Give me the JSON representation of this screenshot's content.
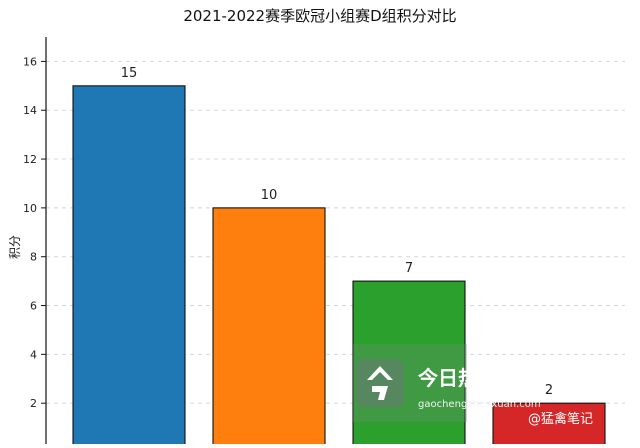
{
  "chart_data": {
    "type": "bar",
    "title": "2021-2022赛季欧冠小组赛D组积分对比",
    "xlabel": "",
    "ylabel": "积分",
    "ylim": [
      0,
      17
    ],
    "yticks": [
      2,
      4,
      6,
      8,
      10,
      12,
      14,
      16
    ],
    "categories": [
      "",
      "",
      "",
      ""
    ],
    "values": [
      15,
      10,
      7,
      2
    ],
    "bar_colors": [
      "#1f77b4",
      "#ff7f0e",
      "#2ca02c",
      "#d62728"
    ],
    "grid": true,
    "legend": "none"
  },
  "watermark": {
    "brand_text": "今日热榜",
    "url": "gaochengzhenxuan.com",
    "credit": "@猛禽笔记",
    "icon": "today-hot-list-icon"
  }
}
